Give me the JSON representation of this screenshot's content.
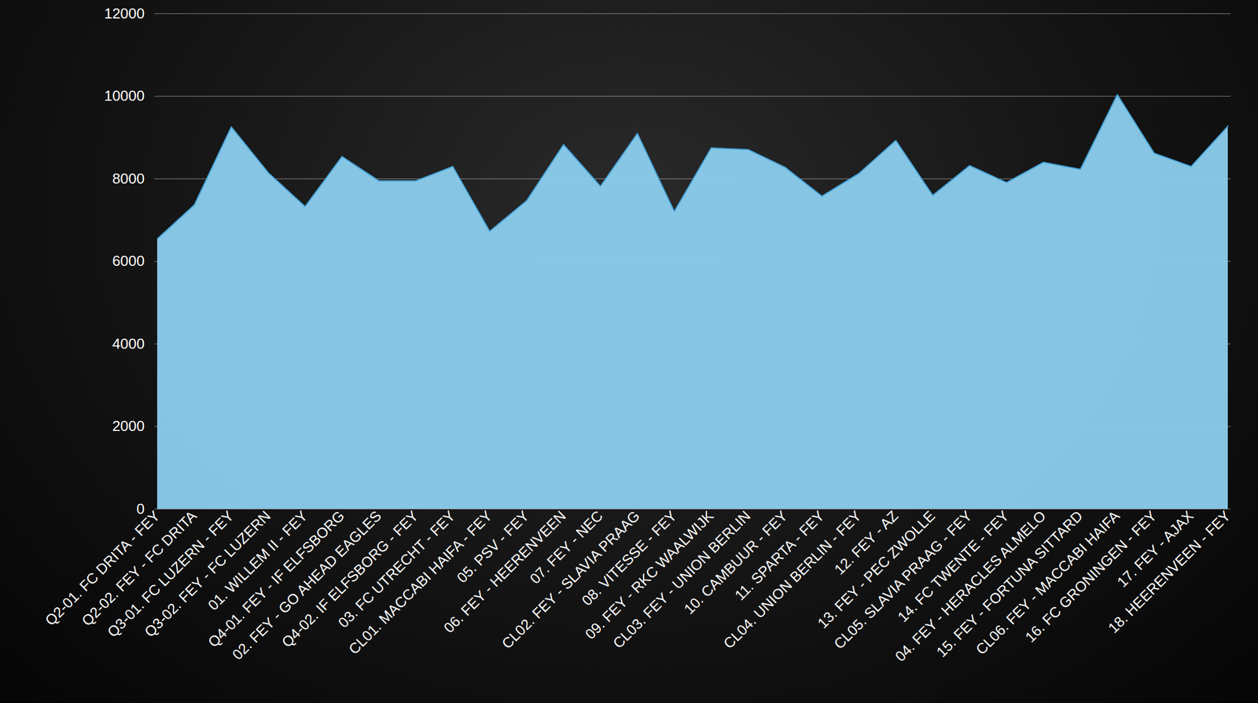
{
  "chart_data": {
    "type": "area",
    "categories": [
      "Q2-01. FC DRITA - FEY",
      "Q2-02. FEY - FC DRITA",
      "Q3-01. FC LUZERN - FEY",
      "Q3-02. FEY - FC LUZERN",
      "01. WILLEM II - FEY",
      "Q4-01. FEY - IF ELFSBORG",
      "02. FEY - GO AHEAD EAGLES",
      "Q4-02. IF ELFSBORG - FEY",
      "03. FC UTRECHT - FEY",
      "CL01. MACCABI HAIFA - FEY",
      "05. PSV - FEY",
      "06. FEY - HEERENVEEN",
      "07. FEY - NEC",
      "CL02. FEY - SLAVIA PRAAG",
      "08. VITESSE - FEY",
      "09. FEY - RKC WAALWIJK",
      "CL03. FEY - UNION BERLIN",
      "10. CAMBUUR - FEY",
      "11. SPARTA - FEY",
      "CL04. UNION BERLIN - FEY",
      "12. FEY - AZ",
      "13. FEY - PEC ZWOLLE",
      "CL05. SLAVIA PRAAG - FEY",
      "14. FC TWENTE - FEY",
      "04. FEY - HERACLES ALMELO",
      "15. FEY - FORTUNA SITTARD",
      "CL06. FEY - MACCABI HAIFA",
      "16. FC GRONINGEN - FEY",
      "17. FEY - AJAX",
      "18. HEERENVEEN - FEY"
    ],
    "values": [
      6550,
      7370,
      9260,
      8150,
      7330,
      8540,
      7950,
      7950,
      8300,
      6730,
      7470,
      8830,
      7820,
      9100,
      7210,
      8750,
      8710,
      8280,
      7580,
      8130,
      8930,
      7600,
      8320,
      7910,
      8400,
      8230,
      10040,
      8620,
      8300,
      9280
    ],
    "color": "#8ccfee",
    "ylim": [
      0,
      12000
    ],
    "yticks": [
      0,
      2000,
      4000,
      6000,
      8000,
      10000,
      12000
    ],
    "grid": true
  }
}
